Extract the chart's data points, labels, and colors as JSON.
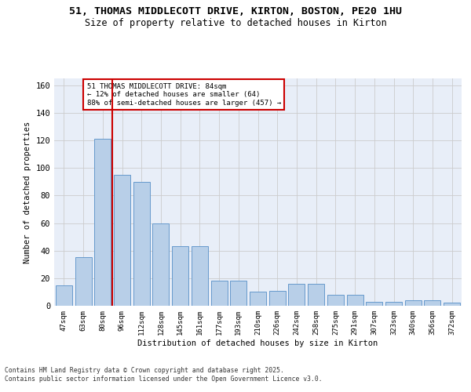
{
  "title_line1": "51, THOMAS MIDDLECOTT DRIVE, KIRTON, BOSTON, PE20 1HU",
  "title_line2": "Size of property relative to detached houses in Kirton",
  "xlabel": "Distribution of detached houses by size in Kirton",
  "ylabel": "Number of detached properties",
  "categories": [
    "47sqm",
    "63sqm",
    "80sqm",
    "96sqm",
    "112sqm",
    "128sqm",
    "145sqm",
    "161sqm",
    "177sqm",
    "193sqm",
    "210sqm",
    "226sqm",
    "242sqm",
    "258sqm",
    "275sqm",
    "291sqm",
    "307sqm",
    "323sqm",
    "340sqm",
    "356sqm",
    "372sqm"
  ],
  "values": [
    15,
    35,
    121,
    95,
    90,
    60,
    43,
    43,
    18,
    18,
    10,
    11,
    16,
    16,
    8,
    8,
    3,
    3,
    4,
    4,
    2
  ],
  "bar_color": "#b8cfe8",
  "bar_edge_color": "#6699cc",
  "grid_color": "#cccccc",
  "bg_color": "#e8eef8",
  "vline_color": "#cc0000",
  "annotation_text": "51 THOMAS MIDDLECOTT DRIVE: 84sqm\n← 12% of detached houses are smaller (64)\n88% of semi-detached houses are larger (457) →",
  "annotation_box_color": "#cc0000",
  "footnote": "Contains HM Land Registry data © Crown copyright and database right 2025.\nContains public sector information licensed under the Open Government Licence v3.0.",
  "ylim": [
    0,
    165
  ],
  "yticks": [
    0,
    20,
    40,
    60,
    80,
    100,
    120,
    140,
    160
  ]
}
